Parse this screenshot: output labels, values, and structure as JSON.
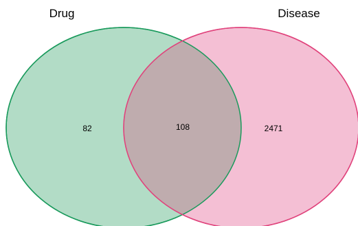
{
  "sets": [
    {
      "name": "Drug",
      "only_count": "82",
      "fill": "#b2dcc6",
      "stroke": "#1a9a5c"
    },
    {
      "name": "Disease",
      "only_count": "2471",
      "fill": "#f4bfd4",
      "stroke": "#e0437c"
    }
  ],
  "intersection": {
    "count": "108",
    "fill": "#bfacae"
  }
}
